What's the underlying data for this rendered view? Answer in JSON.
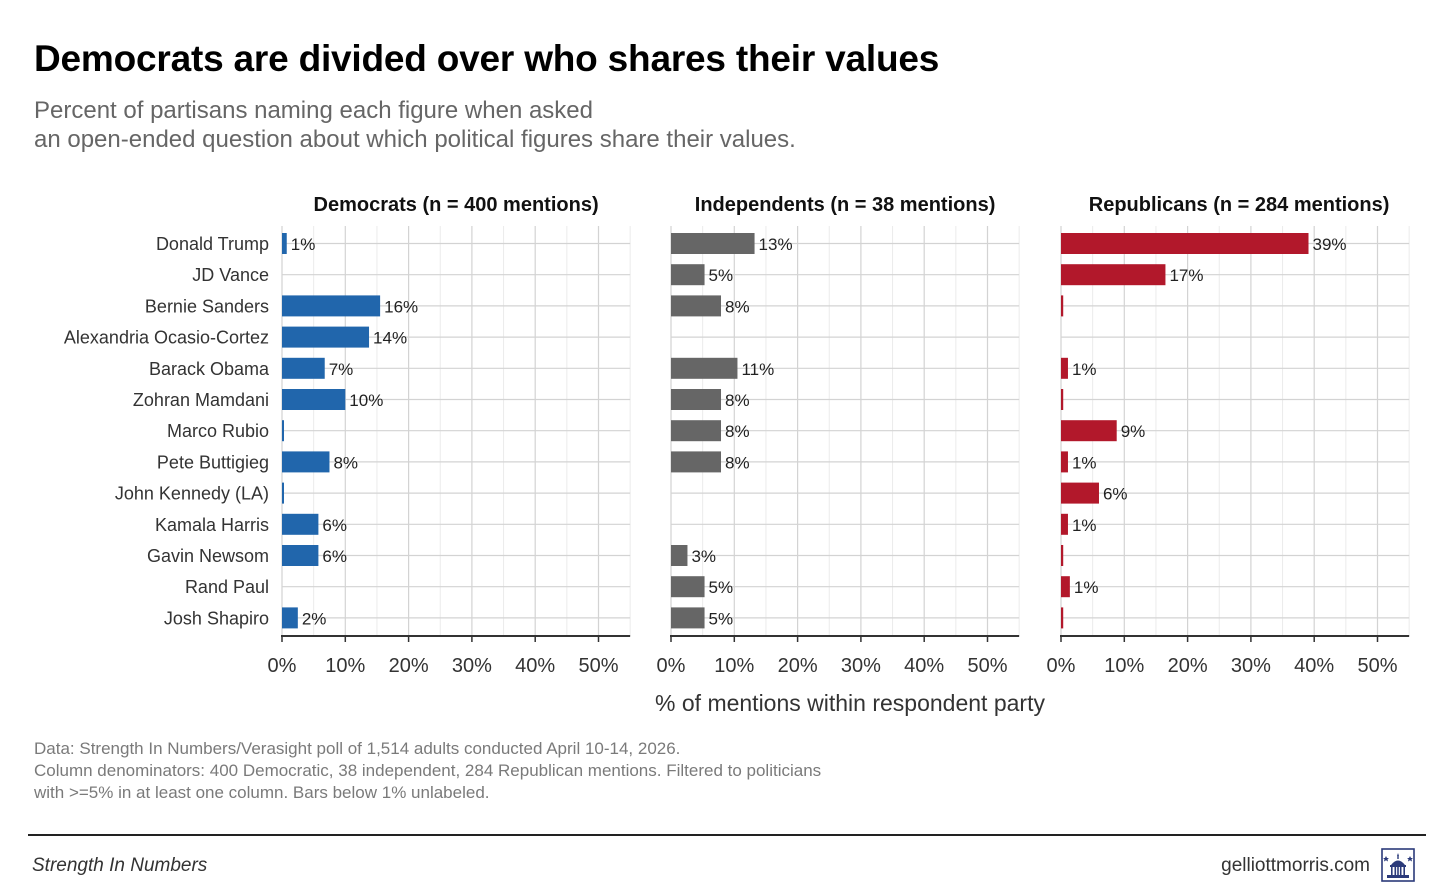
{
  "title": "Democrats are divided over who shares their values",
  "subtitle": [
    "Percent of partisans naming each figure when asked",
    "an open-ended question about which political figures share their values."
  ],
  "axis_title": "% of mentions within respondent party",
  "caption": [
    "Data: Strength In Numbers/Verasight poll of 1,514 adults conducted April 10-14, 2026.",
    "Column denominators: 400 Democratic, 38 independent, 284 Republican mentions. Filtered to politicians",
    "with >=5% in at least one column. Bars below 1% unlabeled."
  ],
  "footer": {
    "left": "Strength In Numbers",
    "right": "gelliottmorris.com",
    "logo_icon": "capitol-logo-icon"
  },
  "colors": {
    "democrats": "#2166ac",
    "independents": "#666666",
    "republicans": "#b2182b",
    "grid": "#d3d3d3",
    "axis": "#333333"
  },
  "chart_data": {
    "type": "bar",
    "orientation": "horizontal",
    "facets": "three panels side by side",
    "categories": [
      "Donald Trump",
      "JD Vance",
      "Bernie Sanders",
      "Alexandria Ocasio-Cortez",
      "Barack Obama",
      "Zohran Mamdani",
      "Marco Rubio",
      "Pete Buttigieg",
      "John Kennedy (LA)",
      "Kamala Harris",
      "Gavin Newsom",
      "Rand Paul",
      "Josh Shapiro"
    ],
    "xlim": [
      0,
      55
    ],
    "xticks": [
      0,
      10,
      20,
      30,
      40,
      50
    ],
    "xtick_labels": [
      "0%",
      "10%",
      "20%",
      "30%",
      "40%",
      "50%"
    ],
    "xlabel": "% of mentions within respondent party",
    "series": [
      {
        "name": "Democrats (n = 400 mentions)",
        "color_key": "democrats",
        "values": [
          0.75,
          null,
          15.5,
          13.75,
          6.75,
          10,
          0.25,
          7.5,
          0.25,
          5.75,
          5.75,
          null,
          2.5
        ],
        "labels": [
          "1%",
          "",
          "16%",
          "14%",
          "7%",
          "10%",
          "",
          "8%",
          "",
          "6%",
          "6%",
          "",
          "2%"
        ]
      },
      {
        "name": "Independents (n = 38 mentions)",
        "color_key": "independents",
        "values": [
          13.2,
          5.3,
          7.9,
          null,
          10.5,
          7.9,
          7.9,
          7.9,
          null,
          null,
          2.6,
          5.3,
          5.3
        ],
        "labels": [
          "13%",
          "5%",
          "8%",
          "",
          "11%",
          "8%",
          "8%",
          "8%",
          "",
          "",
          "3%",
          "5%",
          "5%"
        ]
      },
      {
        "name": "Republicans (n = 284 mentions)",
        "color_key": "republicans",
        "values": [
          39.1,
          16.5,
          0.35,
          null,
          1.1,
          0.35,
          8.8,
          1.1,
          6.0,
          1.1,
          0.35,
          1.4,
          0.35
        ],
        "labels": [
          "39%",
          "17%",
          "",
          "",
          "1%",
          "",
          "9%",
          "1%",
          "6%",
          "1%",
          "",
          "1%",
          ""
        ]
      }
    ],
    "grid": true
  }
}
